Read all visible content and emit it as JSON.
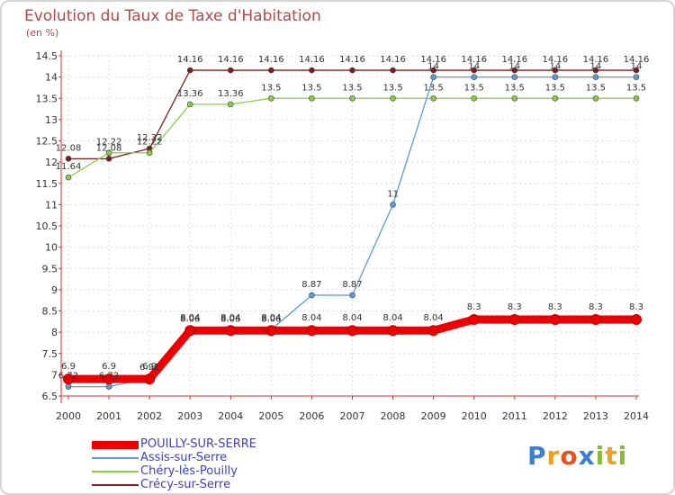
{
  "chart_data": {
    "type": "line",
    "title": "Evolution du Taux de Taxe d'Habitation",
    "ylabel": "(en %)",
    "xlabel": "",
    "categories": [
      "2000",
      "2001",
      "2002",
      "2003",
      "2004",
      "2005",
      "2006",
      "2007",
      "2008",
      "2009",
      "2010",
      "2011",
      "2012",
      "2013",
      "2014"
    ],
    "ylim": [
      6.5,
      14.5
    ],
    "yticks": [
      "6.5",
      "7",
      "7.5",
      "8",
      "8.5",
      "9",
      "9.5",
      "10",
      "10.5",
      "11",
      "11.5",
      "12",
      "12.5",
      "13",
      "13.5",
      "14",
      "14.5"
    ],
    "grid": true,
    "series": [
      {
        "name": "Crécy-sur-Serre",
        "color": "#7a1f1f",
        "values": [
          12.08,
          12.08,
          12.32,
          14.16,
          14.16,
          14.16,
          14.16,
          14.16,
          14.16,
          14.16,
          14.16,
          14.16,
          14.16,
          14.16,
          14.16
        ],
        "labels": [
          "12.08",
          "12.08",
          "12.32",
          "14.16",
          "14.16",
          "14.16",
          "14.16",
          "14.16",
          "14.16",
          "14.16",
          "14.16",
          "14.16",
          "14.16",
          "14.16",
          "14.16"
        ]
      },
      {
        "name": "Chéry-lès-Pouilly",
        "color": "#88cc44",
        "values": [
          11.64,
          12.22,
          12.22,
          13.36,
          13.36,
          13.5,
          13.5,
          13.5,
          13.5,
          13.5,
          13.5,
          13.5,
          13.5,
          13.5,
          13.5
        ],
        "labels": [
          "11.64",
          "12.22",
          "12.22",
          "13.36",
          "13.36",
          "13.5",
          "13.5",
          "13.5",
          "13.5",
          "13.5",
          "13.5",
          "13.5",
          "13.5",
          "13.5",
          "13.5"
        ]
      },
      {
        "name": "Assis-sur-Serre",
        "color": "#5b9bd5",
        "values": [
          6.72,
          6.72,
          6.92,
          8.06,
          8.06,
          8.06,
          8.87,
          8.87,
          11,
          14,
          14,
          14,
          14,
          14,
          14
        ],
        "labels": [
          "6.72",
          "6.72",
          "6.92",
          "8.06",
          "8.06",
          "8.06",
          "8.87",
          "8.87",
          "11",
          "14",
          "14",
          "14",
          "14",
          "14",
          "14"
        ]
      },
      {
        "name": "POUILLY-SUR-SERRE",
        "color": "#ee0000",
        "values": [
          6.9,
          6.9,
          6.9,
          8.04,
          8.04,
          8.04,
          8.04,
          8.04,
          8.04,
          8.04,
          8.3,
          8.3,
          8.3,
          8.3,
          8.3
        ],
        "labels": [
          "6.9",
          "6.9",
          "6.9",
          "8.04",
          "8.04",
          "8.04",
          "8.04",
          "8.04",
          "8.04",
          "8.04",
          "8.3",
          "8.3",
          "8.3",
          "8.3",
          "8.3"
        ]
      }
    ],
    "legend": {
      "placement": "bottom-left",
      "entries": [
        "POUILLY-SUR-SERRE",
        "Assis-sur-Serre",
        "Chéry-lès-Pouilly",
        "Crécy-sur-Serre"
      ]
    }
  },
  "logo": {
    "letters": [
      "P",
      "r",
      "o",
      "x",
      "i",
      "t",
      "i"
    ]
  }
}
